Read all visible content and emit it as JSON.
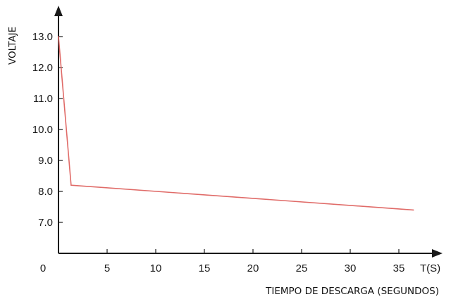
{
  "chart_data": {
    "type": "line",
    "title": "",
    "xlabel": "TIEMPO DE DESCARGA (SEGUNDOS)",
    "x_axis_end_label": "T(S)",
    "ylabel": "VOLTAJE",
    "x_origin_label": "0",
    "xlim": [
      0,
      38
    ],
    "ylim": [
      6.1,
      14
    ],
    "x_ticks": [
      5,
      10,
      15,
      20,
      25,
      30,
      35
    ],
    "x_tick_labels": [
      "5",
      "10",
      "15",
      "20",
      "25",
      "30",
      "35"
    ],
    "y_ticks": [
      7.0,
      8.0,
      9.0,
      10.0,
      11.0,
      12.0,
      13.0
    ],
    "y_tick_labels": [
      "7.0",
      "8.0",
      "9.0",
      "10.0",
      "11.0",
      "12.0",
      "13.0"
    ],
    "grid": false,
    "legend": "none",
    "series": [
      {
        "x": [
          0,
          1.3,
          36.5
        ],
        "y": [
          13.0,
          8.2,
          7.4
        ]
      }
    ]
  },
  "colors": {
    "line": "#e06b68",
    "axis": "#1a1a1a"
  }
}
